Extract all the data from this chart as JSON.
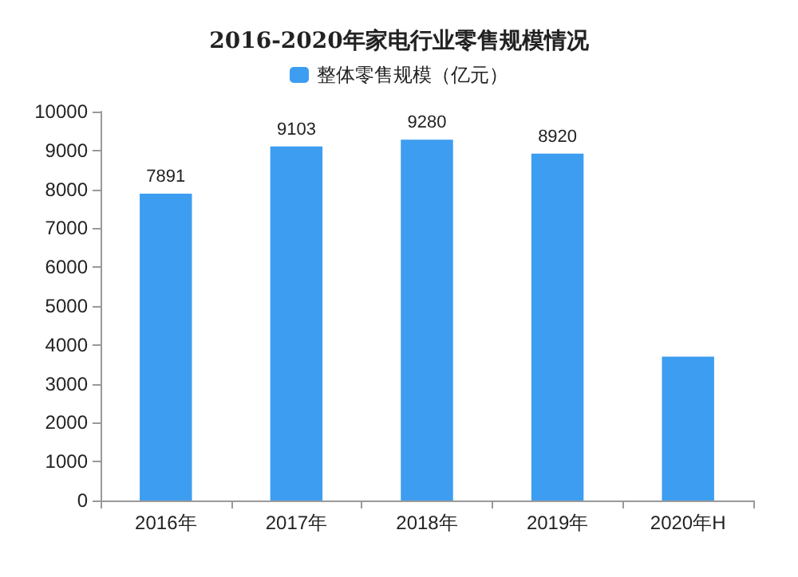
{
  "chart_data": {
    "type": "bar",
    "title": "2016-2020年家电行业零售规模情况",
    "categories": [
      "2016年",
      "2017年",
      "2018年",
      "2019年",
      "2020年H"
    ],
    "series": [
      {
        "name": "整体零售规模（亿元）",
        "color": "#3d9df0",
        "values": [
          7891,
          9103,
          9280,
          8920,
          3700
        ],
        "value_labels": [
          "7891",
          "9103",
          "9280",
          "8920",
          null
        ]
      }
    ],
    "ylim": [
      0,
      10000
    ],
    "yticks": [
      0,
      1000,
      2000,
      3000,
      4000,
      5000,
      6000,
      7000,
      8000,
      9000,
      10000
    ],
    "grid": false,
    "legend": "top"
  }
}
